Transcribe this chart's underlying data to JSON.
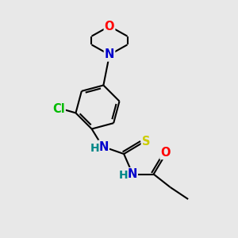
{
  "background_color": "#e8e8e8",
  "atom_colors": {
    "O": "#ff0000",
    "N": "#0000cc",
    "Cl": "#00bb00",
    "S": "#cccc00",
    "C": "#000000",
    "H": "#008888"
  },
  "bond_color": "#000000",
  "bond_width": 1.5,
  "font_size": 10.5
}
